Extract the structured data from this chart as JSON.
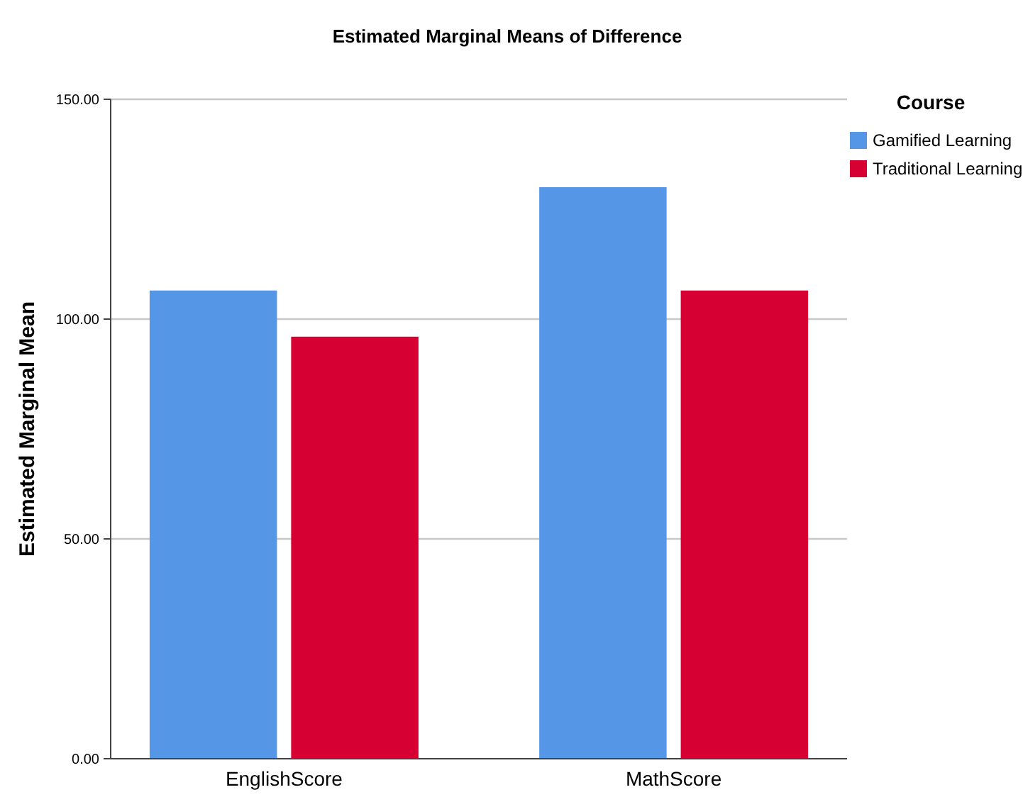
{
  "chart_data": {
    "type": "bar",
    "title": "Estimated Marginal Means of Difference",
    "ylabel": "Estimated Marginal Mean",
    "legend_title": "Course",
    "categories": [
      "EnglishScore",
      "MathScore"
    ],
    "series": [
      {
        "name": "Gamified Learning",
        "color": "#5596e6",
        "values": [
          106.5,
          130
        ]
      },
      {
        "name": "Traditional Learning",
        "color": "#d70032",
        "values": [
          96,
          106.5
        ]
      }
    ],
    "ylim": [
      0,
      150
    ],
    "yticks": [
      {
        "value": 0,
        "label": "0.00"
      },
      {
        "value": 50,
        "label": "50.00"
      },
      {
        "value": 100,
        "label": "100.00"
      },
      {
        "value": 150,
        "label": "150.00"
      }
    ],
    "grid": "y",
    "legend": "top right"
  }
}
